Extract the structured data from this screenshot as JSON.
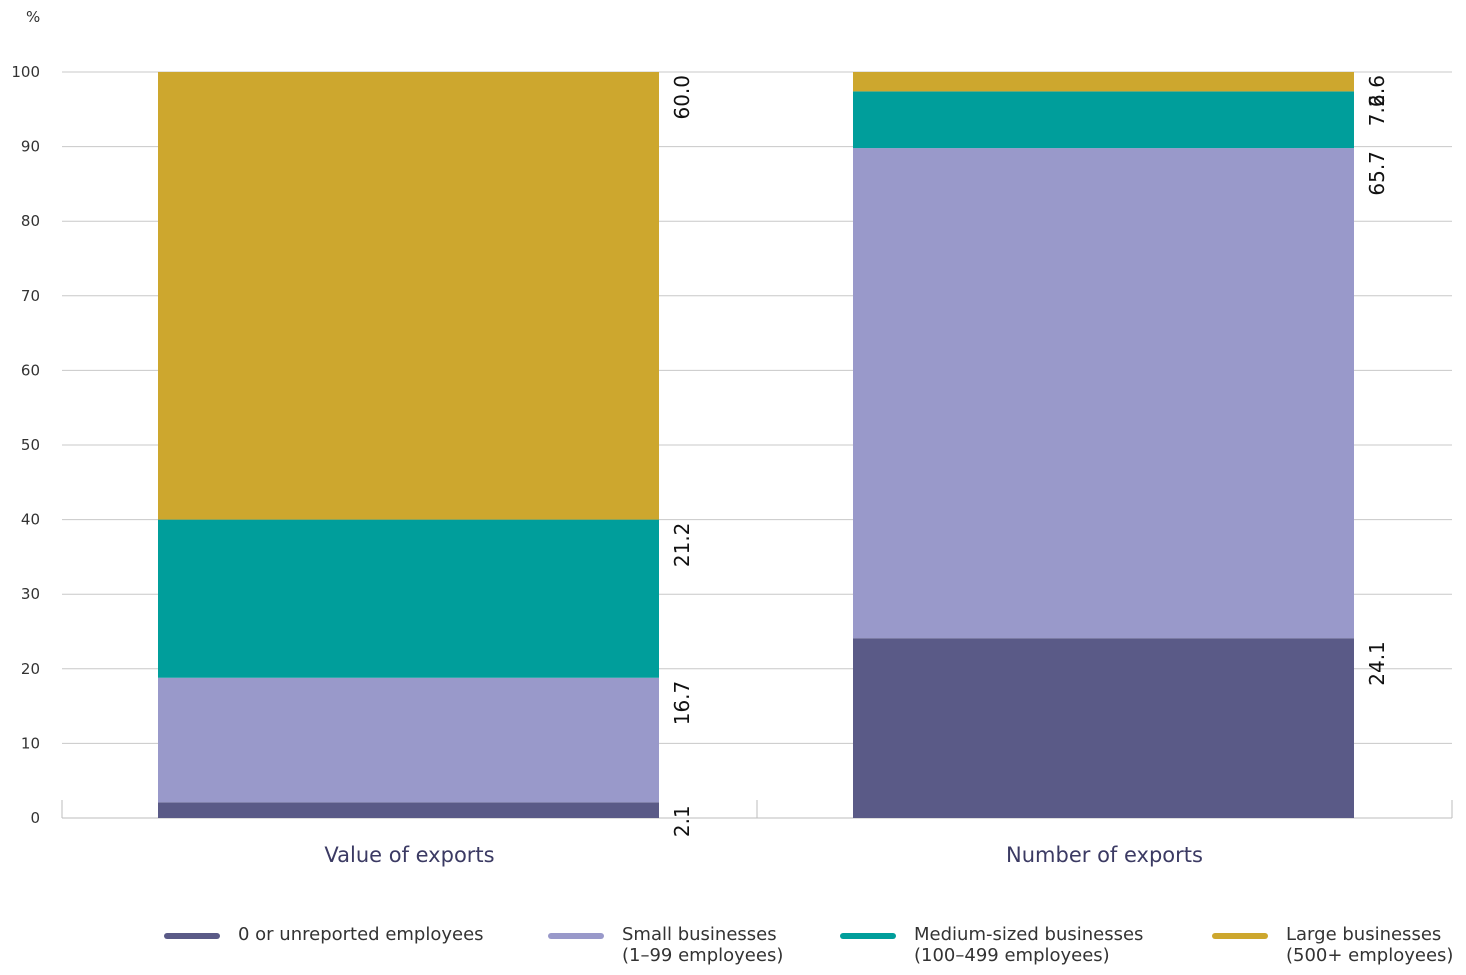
{
  "chart_data": {
    "type": "bar",
    "stacked": true,
    "unit_label": "%",
    "ylim": [
      0,
      100
    ],
    "yticks": [
      0,
      10,
      20,
      30,
      40,
      50,
      60,
      70,
      80,
      90,
      100
    ],
    "grid": true,
    "categories": [
      "Value of exports",
      "Number of exports"
    ],
    "series": [
      {
        "name": "0 or unreported employees",
        "values": [
          2.1,
          24.1
        ],
        "labels": [
          "2.1",
          "24.1"
        ],
        "color": "#5a5a87"
      },
      {
        "name": "Small businesses (1–99 employees)",
        "values": [
          16.7,
          65.7
        ],
        "labels": [
          "16.7",
          "65.7"
        ],
        "color": "#9999ca"
      },
      {
        "name": "Medium-sized businesses (100–499 employees)",
        "values": [
          21.2,
          7.6
        ],
        "labels": [
          "21.2",
          "7.6"
        ],
        "color": "#009e9b"
      },
      {
        "name": "Large businesses (500+ employees)",
        "values": [
          60.0,
          2.6
        ],
        "labels": [
          "60.0",
          "2.6"
        ],
        "color": "#cda72e"
      }
    ],
    "legend_position": "bottom"
  },
  "legend": [
    {
      "line1": "0 or unreported employees",
      "line2": "",
      "color": "#5a5a87"
    },
    {
      "line1": "Small businesses",
      "line2": "(1–99 employees)",
      "color": "#9999ca"
    },
    {
      "line1": "Medium-sized businesses",
      "line2": "(100–499 employees)",
      "color": "#009e9b"
    },
    {
      "line1": "Large businesses",
      "line2": "(500+ employees)",
      "color": "#cda72e"
    }
  ]
}
